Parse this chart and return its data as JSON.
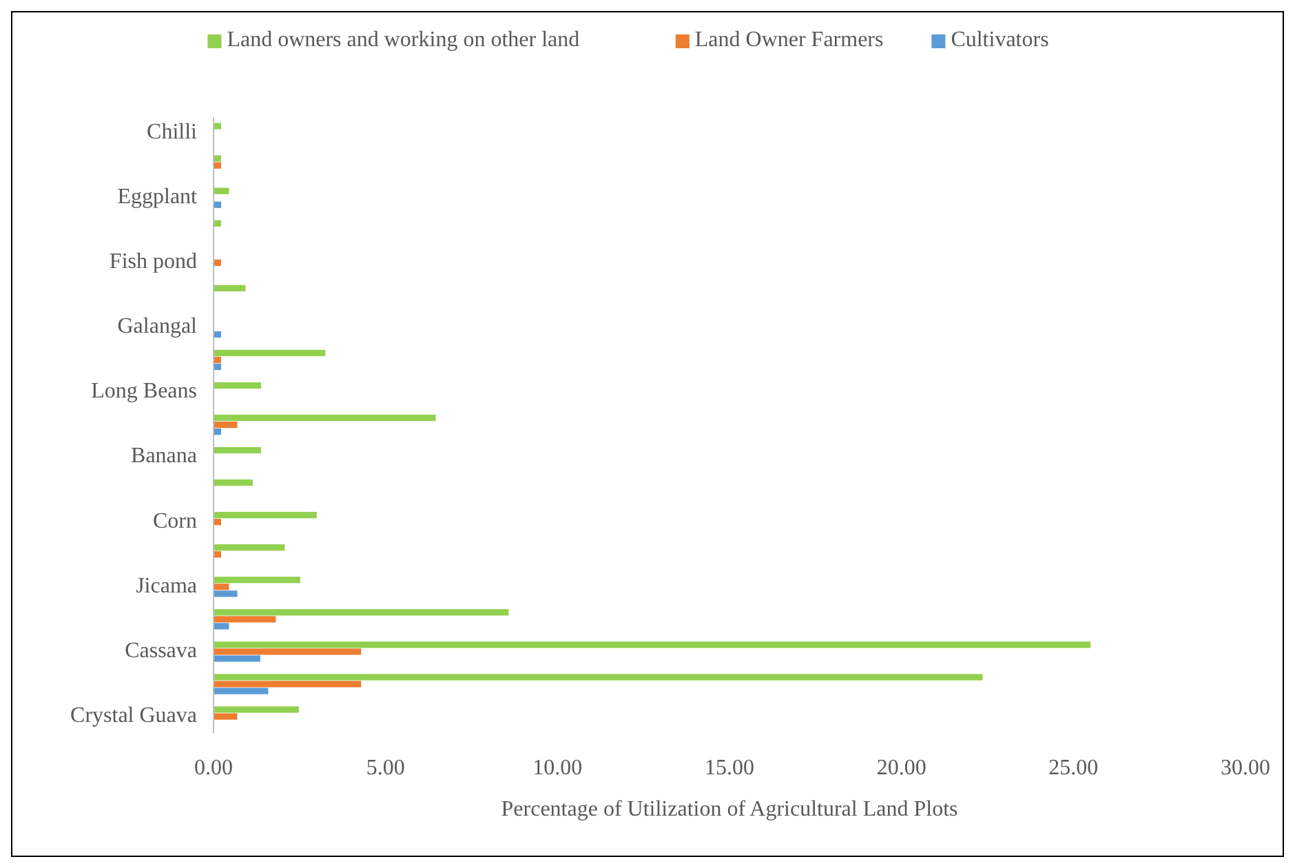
{
  "chart_data": {
    "type": "bar",
    "orientation": "horizontal",
    "xlabel": "Percentage of Utilization of Agricultural Land Plots",
    "categories": [
      "Chilli",
      null,
      "Eggplant",
      null,
      "Fish pond",
      null,
      "Galangal",
      null,
      "Long Beans",
      null,
      "Banana",
      null,
      "Corn",
      null,
      "Jicama",
      null,
      "Cassava",
      null,
      "Crystal Guava"
    ],
    "series": [
      {
        "name": "Land owners and working on other land",
        "color": "#92d050",
        "values": [
          0.22,
          0.22,
          0.45,
          0.22,
          0,
          0.93,
          0,
          3.25,
          1.38,
          6.46,
          1.38,
          1.14,
          3.0,
          2.07,
          2.52,
          8.58,
          25.5,
          22.36,
          2.48
        ]
      },
      {
        "name": "Land Owner Farmers",
        "color": "#ed7d31",
        "values": [
          0,
          0.22,
          0,
          0,
          0.22,
          0,
          0,
          0.22,
          0,
          0.69,
          0,
          0,
          0.22,
          0.22,
          0.45,
          1.81,
          4.29,
          4.29,
          0.69
        ]
      },
      {
        "name": "Cultivators",
        "color": "#5b9bd5",
        "values": [
          0,
          0,
          0.22,
          0,
          0,
          0,
          0.22,
          0.22,
          0,
          0.22,
          0,
          0,
          0,
          0,
          0.69,
          0.45,
          1.36,
          1.59,
          0
        ]
      }
    ],
    "xlim": [
      0,
      30
    ],
    "xticks": [
      {
        "value": 0,
        "label": "0.00"
      },
      {
        "value": 5,
        "label": "5.00"
      },
      {
        "value": 10,
        "label": "10.00"
      },
      {
        "value": 15,
        "label": "15.00"
      },
      {
        "value": 20,
        "label": "20.00"
      },
      {
        "value": 25,
        "label": "25.00"
      },
      {
        "value": 30,
        "label": "30.00"
      }
    ],
    "legend": "top",
    "grid": false
  }
}
